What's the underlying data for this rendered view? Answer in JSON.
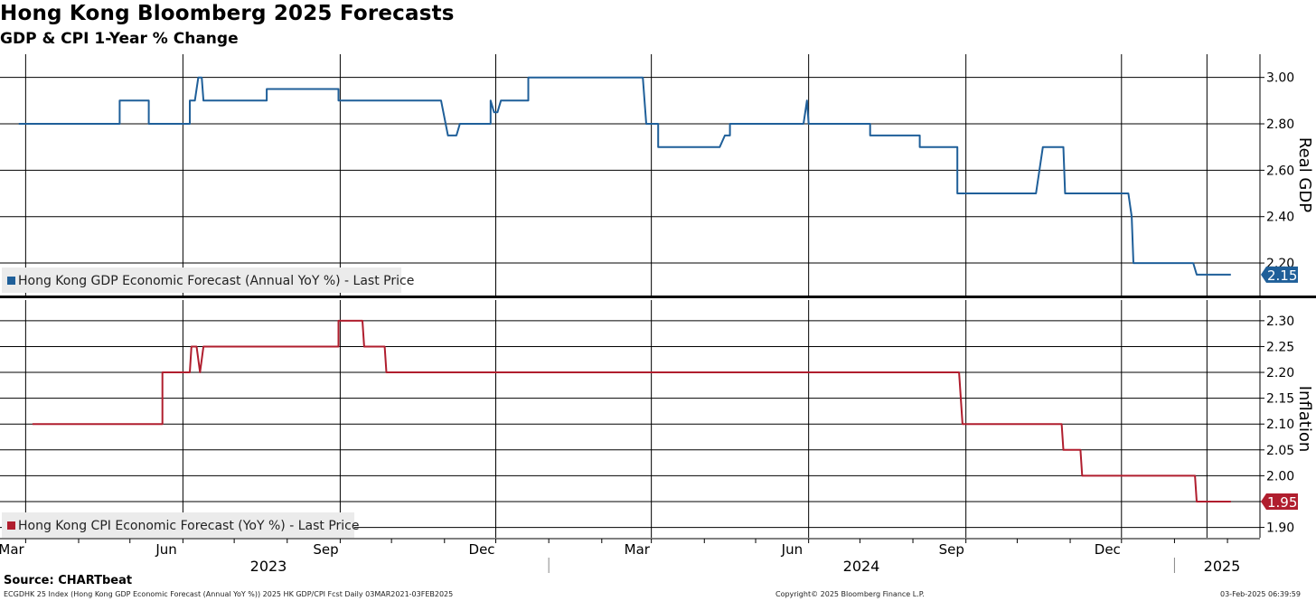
{
  "header": {
    "title": "Hong Kong Bloomberg 2025 Forecasts",
    "subtitle": "GDP & CPI 1-Year % Change"
  },
  "footer": {
    "source": "Source: CHARTbeat",
    "left": "ECGDHK 25 Index (Hong Kong GDP Economic Forecast (Annual YoY %)) 2025 HK GDP/CPI Fcst  Daily 03MAR2021-03FEB2025",
    "center": "Copyright© 2025 Bloomberg Finance L.P.",
    "right": "03-Feb-2025 06:39:59"
  },
  "colors": {
    "gdp": "#1f5f99",
    "cpi": "#b01e2e",
    "grid": "#000000"
  },
  "chart_data": [
    {
      "type": "line",
      "title": "Hong Kong GDP Economic Forecast (Annual YoY %) - Last Price",
      "ylabel": "Real GDP",
      "ylim": [
        2.06,
        3.1
      ],
      "yticks": [
        "3.00",
        "2.80",
        "2.60",
        "2.40",
        "2.20"
      ],
      "x_months": [
        "Mar",
        "Jun",
        "Sep",
        "Dec",
        "Mar",
        "Jun",
        "Sep",
        "Dec"
      ],
      "x_years": [
        "2023",
        "2024",
        "2025"
      ],
      "last_value": "2.15",
      "series": [
        {
          "name": "Hong Kong GDP Economic Forecast (Annual YoY %)",
          "points": [
            [
              "2023-02-25",
              2.8
            ],
            [
              "2023-04-25",
              2.8
            ],
            [
              "2023-04-25",
              2.9
            ],
            [
              "2023-05-12",
              2.9
            ],
            [
              "2023-05-12",
              2.8
            ],
            [
              "2023-06-05",
              2.8
            ],
            [
              "2023-06-05",
              2.9
            ],
            [
              "2023-06-08",
              2.9
            ],
            [
              "2023-06-10",
              3.0
            ],
            [
              "2023-06-12",
              3.0
            ],
            [
              "2023-06-13",
              2.9
            ],
            [
              "2023-07-20",
              2.9
            ],
            [
              "2023-07-20",
              2.95
            ],
            [
              "2023-08-31",
              2.95
            ],
            [
              "2023-08-31",
              2.9
            ],
            [
              "2023-10-30",
              2.9
            ],
            [
              "2023-11-03",
              2.75
            ],
            [
              "2023-11-08",
              2.75
            ],
            [
              "2023-11-10",
              2.8
            ],
            [
              "2023-11-28",
              2.8
            ],
            [
              "2023-11-28",
              2.9
            ],
            [
              "2023-11-30",
              2.85
            ],
            [
              "2023-12-02",
              2.85
            ],
            [
              "2023-12-04",
              2.9
            ],
            [
              "2023-12-20",
              2.9
            ],
            [
              "2023-12-20",
              3.0
            ],
            [
              "2024-02-25",
              3.0
            ],
            [
              "2024-02-27",
              2.8
            ],
            [
              "2024-03-05",
              2.8
            ],
            [
              "2024-03-05",
              2.7
            ],
            [
              "2024-04-10",
              2.7
            ],
            [
              "2024-04-13",
              2.75
            ],
            [
              "2024-04-16",
              2.75
            ],
            [
              "2024-04-16",
              2.8
            ],
            [
              "2024-05-29",
              2.8
            ],
            [
              "2024-05-31",
              2.9
            ],
            [
              "2024-06-01",
              2.8
            ],
            [
              "2024-07-07",
              2.8
            ],
            [
              "2024-07-07",
              2.75
            ],
            [
              "2024-08-05",
              2.75
            ],
            [
              "2024-08-05",
              2.7
            ],
            [
              "2024-08-27",
              2.7
            ],
            [
              "2024-08-27",
              2.5
            ],
            [
              "2024-10-12",
              2.5
            ],
            [
              "2024-10-16",
              2.7
            ],
            [
              "2024-10-28",
              2.7
            ],
            [
              "2024-10-29",
              2.5
            ],
            [
              "2024-12-05",
              2.5
            ],
            [
              "2024-12-07",
              2.4
            ],
            [
              "2024-12-08",
              2.2
            ],
            [
              "2025-01-12",
              2.2
            ],
            [
              "2025-01-14",
              2.15
            ],
            [
              "2025-02-03",
              2.15
            ]
          ]
        }
      ]
    },
    {
      "type": "line",
      "title": "Hong Kong CPI Economic Forecast (YoY %) - Last Price",
      "ylabel": "Inflation",
      "ylim": [
        1.88,
        2.34
      ],
      "yticks": [
        "2.30",
        "2.25",
        "2.20",
        "2.15",
        "2.10",
        "2.05",
        "2.00",
        "1.95",
        "1.90"
      ],
      "last_value": "1.95",
      "series": [
        {
          "name": "Hong Kong CPI Economic Forecast (YoY %)",
          "points": [
            [
              "2023-03-05",
              2.1
            ],
            [
              "2023-05-20",
              2.1
            ],
            [
              "2023-05-20",
              2.2
            ],
            [
              "2023-06-05",
              2.2
            ],
            [
              "2023-06-06",
              2.25
            ],
            [
              "2023-06-09",
              2.25
            ],
            [
              "2023-06-11",
              2.2
            ],
            [
              "2023-06-13",
              2.25
            ],
            [
              "2023-08-31",
              2.25
            ],
            [
              "2023-08-31",
              2.3
            ],
            [
              "2023-09-14",
              2.3
            ],
            [
              "2023-09-15",
              2.25
            ],
            [
              "2023-09-27",
              2.25
            ],
            [
              "2023-09-28",
              2.2
            ],
            [
              "2024-08-28",
              2.2
            ],
            [
              "2024-08-30",
              2.1
            ],
            [
              "2024-10-27",
              2.1
            ],
            [
              "2024-10-28",
              2.05
            ],
            [
              "2024-11-07",
              2.05
            ],
            [
              "2024-11-08",
              2.0
            ],
            [
              "2025-01-13",
              2.0
            ],
            [
              "2025-01-14",
              1.95
            ],
            [
              "2025-02-03",
              1.95
            ]
          ]
        }
      ]
    }
  ]
}
